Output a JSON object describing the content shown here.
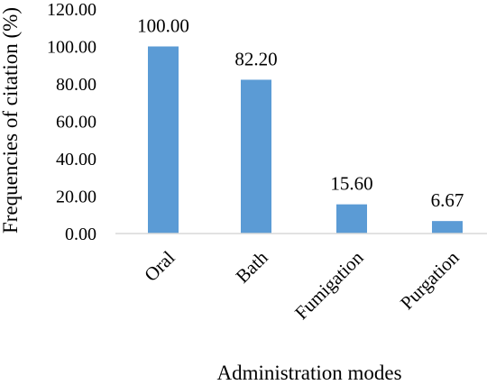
{
  "chart_data": {
    "type": "bar",
    "categories": [
      "Oral",
      "Bath",
      "Fumigation",
      "Purgation"
    ],
    "values": [
      100.0,
      82.2,
      15.6,
      6.67
    ],
    "data_labels": [
      "100.00",
      "82.20",
      "15.60",
      "6.67"
    ],
    "xlabel": "Administration modes",
    "ylabel": "Frequencies of citation (%)",
    "ylim": [
      0,
      120
    ],
    "yticks": [
      "0.00",
      "20.00",
      "40.00",
      "60.00",
      "80.00",
      "100.00",
      "120.00"
    ],
    "grid": false,
    "bar_color": "#5b9bd5"
  }
}
